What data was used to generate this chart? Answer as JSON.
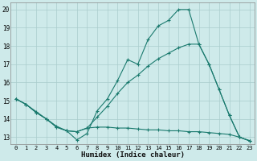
{
  "xlabel": "Humidex (Indice chaleur)",
  "bg_color": "#ceeaea",
  "line_color": "#1a7a6e",
  "grid_color": "#aacccc",
  "xlim": [
    -0.5,
    23.5
  ],
  "ylim": [
    12.6,
    20.4
  ],
  "xticks": [
    0,
    1,
    2,
    3,
    4,
    5,
    6,
    7,
    8,
    9,
    10,
    11,
    12,
    13,
    14,
    15,
    16,
    17,
    18,
    19,
    20,
    21,
    22,
    23
  ],
  "yticks": [
    13,
    14,
    15,
    16,
    17,
    18,
    19,
    20
  ],
  "line1_x": [
    0,
    1,
    2,
    3,
    4,
    5,
    6,
    7,
    8,
    9,
    10,
    11,
    12,
    13,
    14,
    15,
    16,
    17,
    18,
    19,
    20,
    21,
    22,
    23
  ],
  "line1_y": [
    15.1,
    14.8,
    14.4,
    14.0,
    13.6,
    13.35,
    12.85,
    13.2,
    14.45,
    15.1,
    16.1,
    17.25,
    17.0,
    18.35,
    19.1,
    19.4,
    20.0,
    20.0,
    18.1,
    17.0,
    15.6,
    14.2,
    13.0,
    12.8
  ],
  "line2_x": [
    0,
    1,
    2,
    3,
    4,
    5,
    6,
    7,
    8,
    9,
    10,
    11,
    12,
    13,
    14,
    15,
    16,
    17,
    18,
    19,
    20,
    21,
    22,
    23
  ],
  "line2_y": [
    15.1,
    14.8,
    14.35,
    14.0,
    13.55,
    13.35,
    13.3,
    13.5,
    14.1,
    14.7,
    15.4,
    16.0,
    16.4,
    16.9,
    17.3,
    17.6,
    17.9,
    18.1,
    18.1,
    17.0,
    15.6,
    14.2,
    13.0,
    12.8
  ],
  "line3_x": [
    0,
    1,
    2,
    3,
    4,
    5,
    6,
    7,
    8,
    9,
    10,
    11,
    12,
    13,
    14,
    15,
    16,
    17,
    18,
    19,
    20,
    21,
    22,
    23
  ],
  "line3_y": [
    15.1,
    14.8,
    14.35,
    14.0,
    13.55,
    13.35,
    13.3,
    13.5,
    13.55,
    13.55,
    13.5,
    13.5,
    13.45,
    13.4,
    13.4,
    13.35,
    13.35,
    13.3,
    13.3,
    13.25,
    13.2,
    13.15,
    13.0,
    12.8
  ]
}
